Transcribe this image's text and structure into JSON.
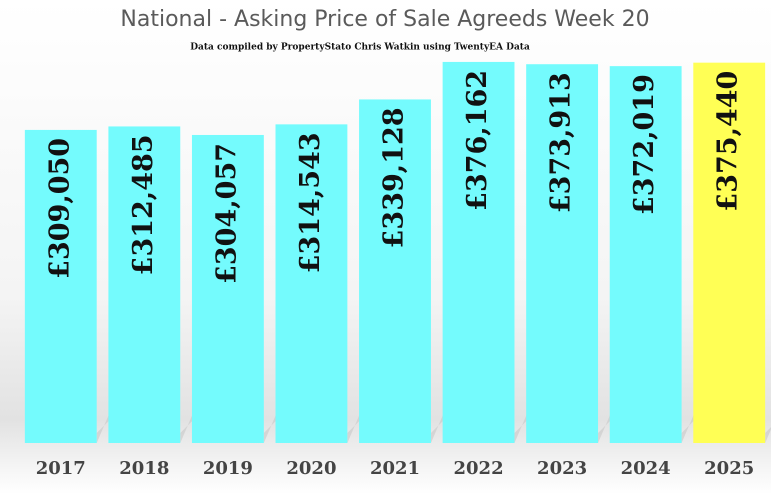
{
  "chart_data": {
    "type": "bar",
    "title": "National - Asking Price of Sale Agreeds  Week 20",
    "subtitle": "Data compiled by PropertyStato Chris Watkin using TwentyEA Data",
    "categories": [
      "2017",
      "2018",
      "2019",
      "2020",
      "2021",
      "2022",
      "2023",
      "2024",
      "2025"
    ],
    "values": [
      309050,
      312485,
      304057,
      314543,
      339128,
      376162,
      373913,
      372019,
      375440
    ],
    "value_labels": [
      "£309,050",
      "£312,485",
      "£304,057",
      "£314,543",
      "£339,128",
      "£376,162",
      "£373,913",
      "£372,019",
      "£375,440"
    ],
    "colors": [
      "#74fbfd",
      "#74fbfd",
      "#74fbfd",
      "#74fbfd",
      "#74fbfd",
      "#74fbfd",
      "#74fbfd",
      "#74fbfd",
      "#ffff55"
    ],
    "ylim": [
      0,
      383000
    ]
  }
}
